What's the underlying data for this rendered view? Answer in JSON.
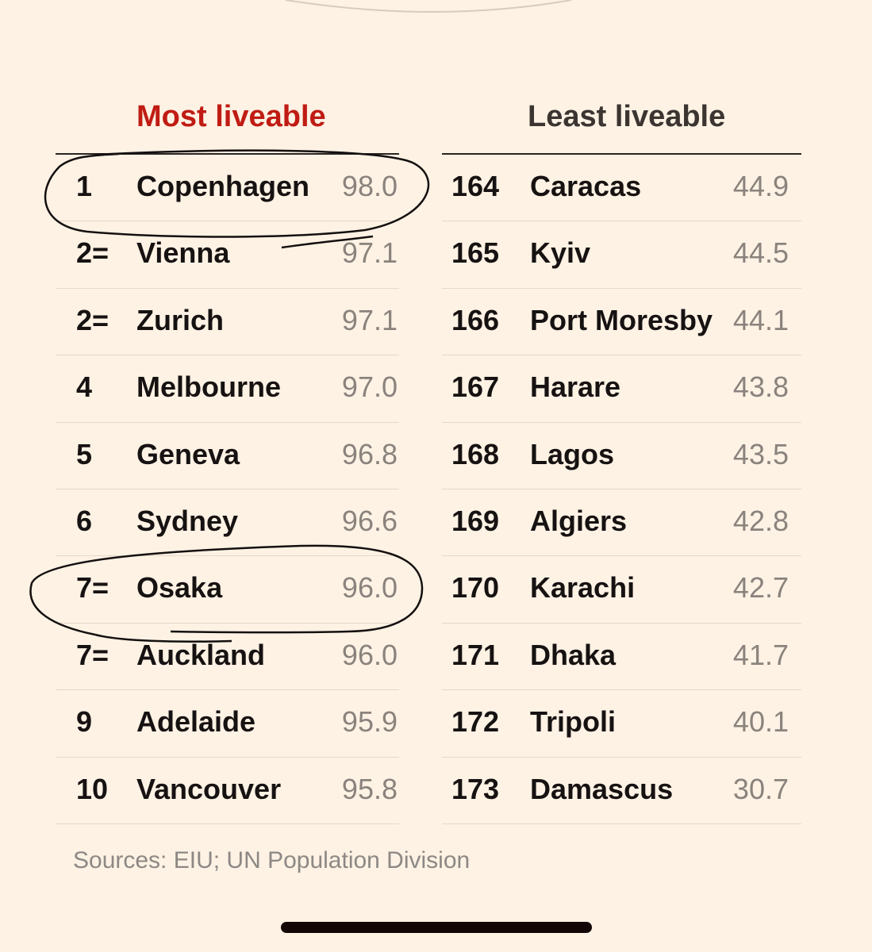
{
  "chart_data": {
    "type": "table",
    "tables": [
      {
        "title": "Most liveable",
        "title_color": "#c01c14",
        "rows": [
          {
            "rank": "1",
            "city": "Copenhagen",
            "score": "98.0"
          },
          {
            "rank": "2=",
            "city": "Vienna",
            "score": "97.1"
          },
          {
            "rank": "2=",
            "city": "Zurich",
            "score": "97.1"
          },
          {
            "rank": "4",
            "city": "Melbourne",
            "score": "97.0"
          },
          {
            "rank": "5",
            "city": "Geneva",
            "score": "96.8"
          },
          {
            "rank": "6",
            "city": "Sydney",
            "score": "96.6"
          },
          {
            "rank": "7=",
            "city": "Osaka",
            "score": "96.0"
          },
          {
            "rank": "7=",
            "city": "Auckland",
            "score": "96.0"
          },
          {
            "rank": "9",
            "city": "Adelaide",
            "score": "95.9"
          },
          {
            "rank": "10",
            "city": "Vancouver",
            "score": "95.8"
          }
        ]
      },
      {
        "title": "Least liveable",
        "title_color": "#3b3431",
        "rows": [
          {
            "rank": "164",
            "city": "Caracas",
            "score": "44.9"
          },
          {
            "rank": "165",
            "city": "Kyiv",
            "score": "44.5"
          },
          {
            "rank": "166",
            "city": "Port Moresby",
            "score": "44.1"
          },
          {
            "rank": "167",
            "city": "Harare",
            "score": "43.8"
          },
          {
            "rank": "168",
            "city": "Lagos",
            "score": "43.5"
          },
          {
            "rank": "169",
            "city": "Algiers",
            "score": "42.8"
          },
          {
            "rank": "170",
            "city": "Karachi",
            "score": "42.7"
          },
          {
            "rank": "171",
            "city": "Dhaka",
            "score": "41.7"
          },
          {
            "rank": "172",
            "city": "Tripoli",
            "score": "40.1"
          },
          {
            "rank": "173",
            "city": "Damascus",
            "score": "30.7"
          }
        ]
      }
    ],
    "source": "Sources: EIU; UN Population Division",
    "annotations": {
      "circled_cities": [
        "Copenhagen",
        "Osaka"
      ]
    }
  }
}
